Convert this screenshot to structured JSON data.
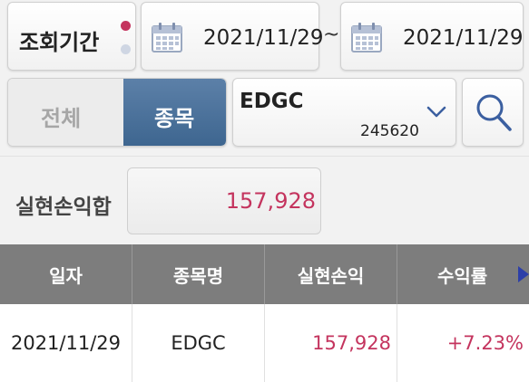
{
  "filter": {
    "period_label": "조회기간",
    "date_from": "2021/11/29",
    "date_separator": "~",
    "date_to": "2021/11/29",
    "scope_all_label": "전체",
    "scope_item_label": "종목",
    "selected_scope": "종목",
    "stock_name": "EDGC",
    "stock_code": "245620"
  },
  "summary": {
    "label": "실현손익합",
    "value": "157,928"
  },
  "table": {
    "headers": [
      "일자",
      "종목명",
      "실현손익",
      "수익률"
    ],
    "rows": [
      {
        "date": "2021/11/29",
        "name": "EDGC",
        "pnl": "157,928",
        "rate": "+7.23%"
      }
    ]
  },
  "colors": {
    "accent_positive": "#c4345e",
    "selected_segment": "#4a6f9a",
    "header_bg": "#7d7d7d",
    "icon_blue": "#3b5fa0"
  },
  "icons": [
    "calendar-icon",
    "search-icon",
    "chevron-down-icon",
    "next-page-arrow-icon"
  ]
}
